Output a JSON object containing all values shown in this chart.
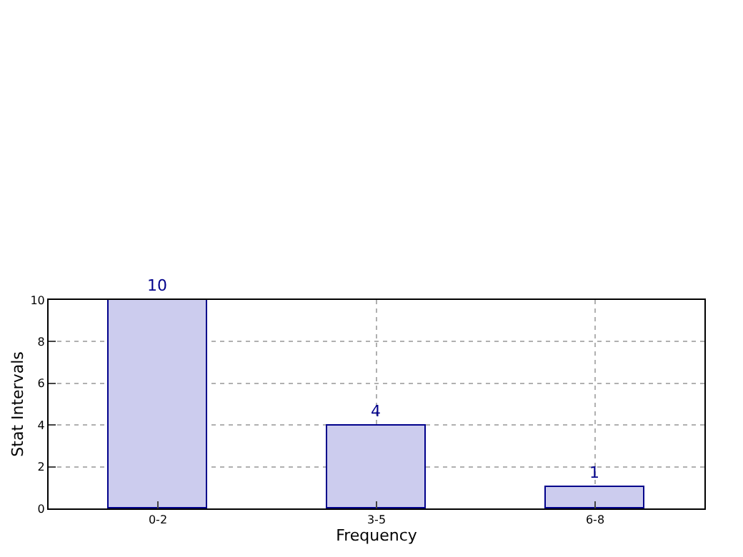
{
  "chart_data": {
    "type": "bar",
    "xlabel": "Frequency",
    "ylabel": "Stat Intervals",
    "categories": [
      "0-2",
      "3-5",
      "6-8"
    ],
    "values": [
      10,
      4,
      1
    ],
    "color": "#ccccee",
    "ylim": [
      0,
      10
    ],
    "yticks": [
      0,
      2,
      4,
      6,
      8,
      10
    ],
    "grid": true,
    "line_style": "dotted",
    "data_labels": true
  }
}
